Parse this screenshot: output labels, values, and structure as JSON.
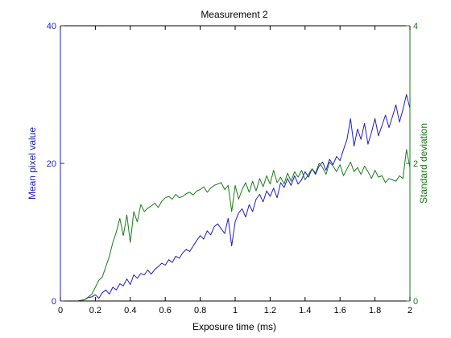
{
  "colors": {
    "left_axis": "#1f1fb4",
    "right_axis": "#1a7a1a",
    "x_axis": "#000000",
    "background": "#ffffff"
  },
  "chart_data": {
    "type": "line",
    "title": "Measurement 2",
    "xlabel": "Exposure time (ms)",
    "ylabel_left": "Mean pixel value",
    "ylabel_right": "Standard deviation",
    "xlim": [
      0,
      2
    ],
    "ylim_left": [
      0,
      40
    ],
    "ylim_right": [
      0,
      4
    ],
    "xticks": [
      0,
      0.2,
      0.4,
      0.6,
      0.8,
      1,
      1.2,
      1.4,
      1.6,
      1.8,
      2
    ],
    "xtick_labels": [
      "0",
      "0.2",
      "0.4",
      "0.6",
      "0.8",
      "1",
      "1.2",
      "1.4",
      "1.6",
      "1.8",
      "2"
    ],
    "yticks_left": [
      0,
      20,
      40
    ],
    "ytick_labels_left": [
      "0",
      "20",
      "40"
    ],
    "yticks_right": [
      0,
      2,
      4
    ],
    "ytick_labels_right": [
      "0",
      "2",
      "4"
    ],
    "grid": false,
    "legend": "none",
    "series": [
      {
        "axis": "left",
        "color": "#1f1fb4",
        "x": [
          0.02,
          0.06,
          0.1,
          0.14,
          0.16,
          0.18,
          0.2,
          0.22,
          0.24,
          0.26,
          0.28,
          0.3,
          0.32,
          0.34,
          0.36,
          0.38,
          0.4,
          0.42,
          0.44,
          0.46,
          0.48,
          0.5,
          0.52,
          0.54,
          0.56,
          0.58,
          0.6,
          0.62,
          0.64,
          0.66,
          0.68,
          0.7,
          0.72,
          0.74,
          0.76,
          0.78,
          0.8,
          0.82,
          0.84,
          0.86,
          0.88,
          0.9,
          0.92,
          0.94,
          0.96,
          0.98,
          1.0,
          1.02,
          1.04,
          1.06,
          1.08,
          1.1,
          1.12,
          1.14,
          1.16,
          1.18,
          1.2,
          1.22,
          1.24,
          1.26,
          1.28,
          1.3,
          1.32,
          1.34,
          1.36,
          1.38,
          1.4,
          1.42,
          1.44,
          1.46,
          1.48,
          1.5,
          1.52,
          1.54,
          1.56,
          1.58,
          1.6,
          1.62,
          1.64,
          1.66,
          1.68,
          1.7,
          1.72,
          1.74,
          1.76,
          1.78,
          1.8,
          1.82,
          1.84,
          1.86,
          1.88,
          1.9,
          1.92,
          1.94,
          1.96,
          1.98,
          2.0
        ],
        "y": [
          0,
          0,
          0,
          0.2,
          0.5,
          0.6,
          0.9,
          0.4,
          1.2,
          1.6,
          1.0,
          2.0,
          1.6,
          2.5,
          2.2,
          3.2,
          2.4,
          3.8,
          3.3,
          4.0,
          3.8,
          4.5,
          3.9,
          4.6,
          5.0,
          5.5,
          5.2,
          6.0,
          5.6,
          6.5,
          6.2,
          7.0,
          7.5,
          7.2,
          8.0,
          8.8,
          9.5,
          9.0,
          10.2,
          9.6,
          10.8,
          11.2,
          10.5,
          9.8,
          12.0,
          8.0,
          11.5,
          12.8,
          13.4,
          12.2,
          14.0,
          13.0,
          14.8,
          15.5,
          14.4,
          16.0,
          15.2,
          16.4,
          15.0,
          17.2,
          16.5,
          17.8,
          16.8,
          18.2,
          17.0,
          17.6,
          18.8,
          18.0,
          19.2,
          18.4,
          19.6,
          20.2,
          19.0,
          20.6,
          19.8,
          21.0,
          20.4,
          22.0,
          23.5,
          26.5,
          22.5,
          25.0,
          23.5,
          25.8,
          22.8,
          24.5,
          26.5,
          24.0,
          25.5,
          27.0,
          25.2,
          26.8,
          28.5,
          26.0,
          27.8,
          30.0,
          28.0
        ]
      },
      {
        "axis": "right",
        "color": "#1a7a1a",
        "x": [
          0.02,
          0.06,
          0.1,
          0.14,
          0.16,
          0.18,
          0.2,
          0.22,
          0.24,
          0.26,
          0.28,
          0.3,
          0.32,
          0.34,
          0.36,
          0.38,
          0.4,
          0.42,
          0.44,
          0.46,
          0.48,
          0.5,
          0.52,
          0.54,
          0.56,
          0.58,
          0.6,
          0.62,
          0.64,
          0.66,
          0.68,
          0.7,
          0.72,
          0.74,
          0.76,
          0.78,
          0.8,
          0.82,
          0.84,
          0.86,
          0.88,
          0.9,
          0.92,
          0.94,
          0.96,
          0.98,
          1.0,
          1.02,
          1.04,
          1.06,
          1.08,
          1.1,
          1.12,
          1.14,
          1.16,
          1.18,
          1.2,
          1.22,
          1.24,
          1.26,
          1.28,
          1.3,
          1.32,
          1.34,
          1.36,
          1.38,
          1.4,
          1.42,
          1.44,
          1.46,
          1.48,
          1.5,
          1.52,
          1.54,
          1.56,
          1.58,
          1.6,
          1.62,
          1.64,
          1.66,
          1.68,
          1.7,
          1.72,
          1.74,
          1.76,
          1.78,
          1.8,
          1.82,
          1.84,
          1.86,
          1.88,
          1.9,
          1.92,
          1.94,
          1.96,
          1.98,
          2.0
        ],
        "y": [
          0,
          0,
          0,
          0.02,
          0.06,
          0.1,
          0.2,
          0.3,
          0.35,
          0.5,
          0.65,
          0.85,
          1.0,
          1.2,
          0.95,
          1.25,
          0.85,
          1.3,
          1.15,
          1.4,
          1.3,
          1.35,
          1.38,
          1.42,
          1.36,
          1.45,
          1.5,
          1.52,
          1.48,
          1.55,
          1.5,
          1.52,
          1.56,
          1.58,
          1.54,
          1.6,
          1.62,
          1.66,
          1.58,
          1.64,
          1.68,
          1.7,
          1.72,
          1.62,
          1.68,
          1.3,
          1.68,
          1.48,
          1.62,
          1.72,
          1.58,
          1.74,
          1.6,
          1.78,
          1.66,
          1.82,
          1.7,
          1.9,
          1.72,
          1.8,
          1.7,
          1.86,
          1.74,
          1.88,
          1.8,
          1.9,
          1.76,
          1.84,
          1.92,
          1.86,
          2.0,
          1.94,
          1.84,
          2.02,
          1.96,
          1.88,
          1.98,
          1.82,
          1.92,
          2.02,
          1.88,
          1.94,
          1.84,
          1.96,
          1.88,
          1.78,
          1.9,
          1.8,
          1.82,
          1.72,
          1.78,
          1.76,
          1.74,
          1.82,
          1.78,
          2.2,
          1.94
        ]
      }
    ]
  }
}
